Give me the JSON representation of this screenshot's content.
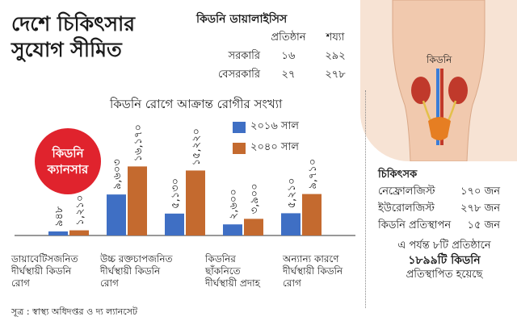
{
  "headline": {
    "line1": "দেশে চিকিৎসার",
    "line2": "সুযোগ সীমিত"
  },
  "dialysis": {
    "title": "কিডনি ডায়ালাইসিস",
    "col_institutions": "প্রতিষ্ঠান",
    "col_beds": "শয্যা",
    "rows": [
      {
        "label": "সরকারি",
        "institutions": "১৬",
        "beds": "২৯২"
      },
      {
        "label": "বেসরকারি",
        "institutions": "২৭",
        "beds": "২৭৮"
      }
    ]
  },
  "body_illustration": {
    "label": "কিডনি",
    "colors": {
      "skin": "#f7e3d4",
      "kidney": "#c0392b",
      "bladder": "#e67e22",
      "vessel": "#3b7dd8"
    }
  },
  "badge": {
    "line1": "কিডনি",
    "line2": "ক্যানসার"
  },
  "chart_data": {
    "type": "bar",
    "title": "কিডনি রোগে আক্রান্ত রোগীর সংখ্যা",
    "categories": [
      {
        "line1": "ডায়াবেটিসজনিত",
        "line2": "দীর্ঘস্থায়ী কিডনি",
        "line3": "রোগ"
      },
      {
        "line1": "উচ্চ রক্তচাপজনিত",
        "line2": "দীর্ঘস্থায়ী কিডনি",
        "line3": "রোগ"
      },
      {
        "line1": "",
        "line2": "",
        "line3": ""
      },
      {
        "line1": "কিডনির",
        "line2": "ছাঁকনিতে",
        "line3": "দীর্ঘস্থায়ী প্রদাহ"
      },
      {
        "line1": "অন্যান্য কারণে",
        "line2": "দীর্ঘস্থায়ী কিডনি",
        "line3": "রোগ"
      }
    ],
    "series": [
      {
        "name": "২০১৬ সাল",
        "color": "#3f6fc4",
        "values": [
          948,
          9603,
          5130,
          2600,
          5210
        ],
        "labels": [
          "৯৪৮",
          "৯,৬০৩",
          "৫,১৩০",
          "২,৬০০",
          "৫,২১০"
        ]
      },
      {
        "name": "২০৪০ সাল",
        "color": "#c46a2f",
        "values": [
          1210,
          16170,
          15220,
          3900,
          9710
        ],
        "labels": [
          "১,২১০",
          "১৬,১৭০",
          "১৫,২২০",
          "৩,৯০০",
          "৯,৭১০"
        ]
      }
    ],
    "ylim": [
      0,
      17000
    ],
    "grid": false,
    "legend": "top-right"
  },
  "doctors": {
    "title": "চিকিৎসক",
    "rows": [
      {
        "label": "নেফ্রোলজিস্ট",
        "value": "১৭০ জন"
      },
      {
        "label": "ইউরোলজিস্ট",
        "value": "২৭৮ জন"
      },
      {
        "label": "কিডনি প্রতিস্থাপন",
        "value": "১৫ জন"
      }
    ]
  },
  "transplant": {
    "line1": "এ পর্যন্ত ৮টি প্রতিষ্ঠানে",
    "line2": "১৮৯৯টি কিডনি",
    "line3": "প্রতিস্থাপিত হয়েছে"
  },
  "source": "সূত্র : স্বাস্থ্য অধিদপ্তর ও দ্য ল্যানসেট"
}
